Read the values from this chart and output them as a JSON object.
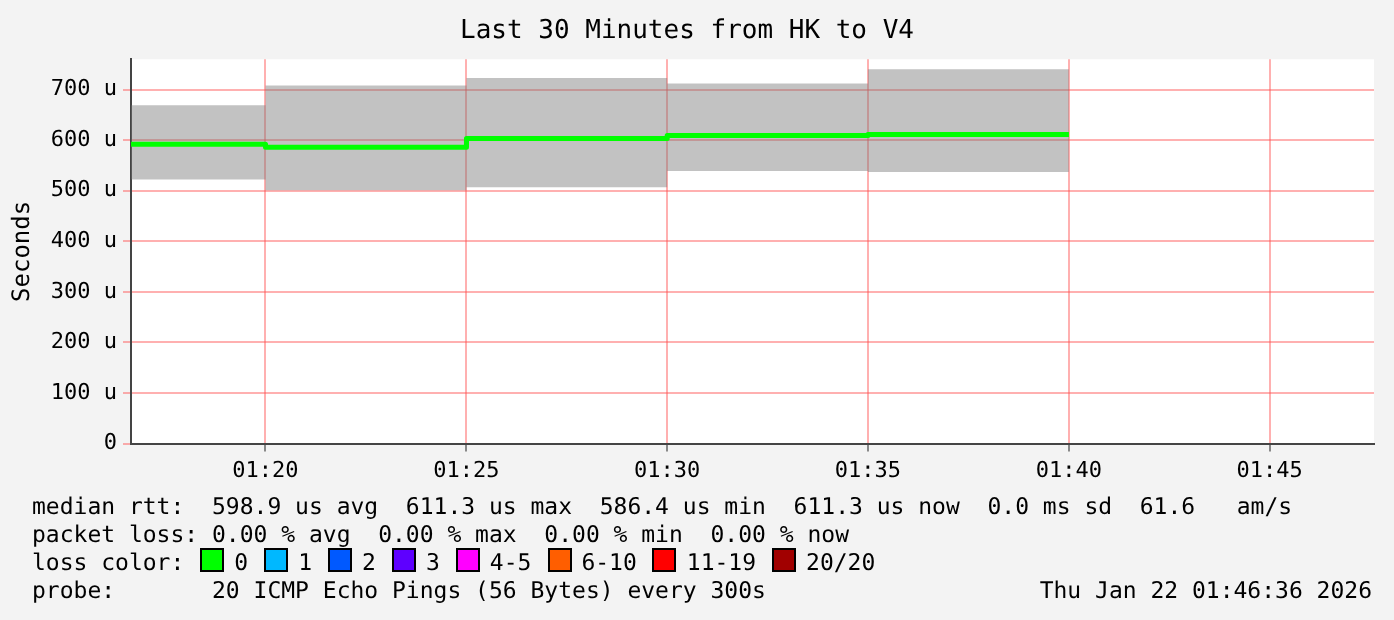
{
  "chart_data": {
    "type": "step",
    "title": "Last 30 Minutes from HK to V4",
    "ylabel": "Seconds",
    "x": [
      1.2775,
      1.3333,
      1.4167,
      1.5,
      1.5833,
      1.6667
    ],
    "series": [
      {
        "color": "#00ff00",
        "values": [
          592,
          586,
          603,
          609,
          611,
          611
        ],
        "lower": [
          522,
          501,
          507,
          539,
          537,
          537
        ],
        "upper": [
          669,
          708,
          723,
          712,
          740,
          740
        ]
      }
    ],
    "xlim": [
      1.2775,
      1.7933
    ],
    "xticks": [
      {
        "value": 1.3333,
        "label": "01:20"
      },
      {
        "value": 1.4167,
        "label": "01:25"
      },
      {
        "value": 1.5,
        "label": "01:30"
      },
      {
        "value": 1.5833,
        "label": "01:35"
      },
      {
        "value": 1.6667,
        "label": "01:40"
      },
      {
        "value": 1.75,
        "label": "01:45"
      }
    ],
    "ylim": [
      0,
      760
    ],
    "yticks": [
      0,
      {
        "value": 100,
        "label": "100 u"
      },
      {
        "value": 200,
        "label": "200 u"
      },
      {
        "value": 300,
        "label": "300 u"
      },
      {
        "value": 400,
        "label": "400 u"
      },
      {
        "value": 500,
        "label": "500 u"
      },
      {
        "value": 600,
        "label": "600 u"
      },
      {
        "value": 700,
        "label": "700 u"
      }
    ],
    "grid": true,
    "marker": "none",
    "line_style": "solid",
    "annotations": [
      "median rtt:  598.9 us avg  611.3 us max  586.4 us min  611.3 us now  0.0 ms sd  61.6   am/s",
      "packet loss: 0.00 % avg  0.00 % max  0.00 % min  0.00 % now",
      "loss color:",
      "0",
      "1",
      "2",
      "3",
      "4-5",
      "6-10",
      "11-19",
      "20/20",
      "probe:       20 ICMP Echo Pings (56 Bytes) every 300s",
      "Thu Jan 22 01:46:36 2026"
    ]
  }
}
